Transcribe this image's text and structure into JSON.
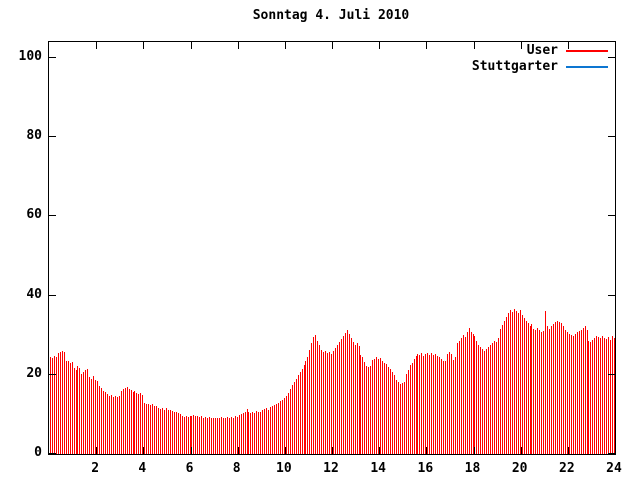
{
  "title": "Sonntag 4. Juli 2010",
  "colors": {
    "background": "#ffffff",
    "axis": "#000000",
    "text": "#000000",
    "user_red": "#ff0000",
    "stuttgarter_blue": "#0d76d1"
  },
  "legend": {
    "entries": [
      {
        "label": "User",
        "color": "#ff0000"
      },
      {
        "label": "Stuttgarter",
        "color": "#0d76d1"
      }
    ]
  },
  "chart_data": {
    "type": "bar",
    "title": "Sonntag 4. Juli 2010",
    "xlabel": "",
    "ylabel": "",
    "x_unit": "hour_of_day",
    "interval_minutes": 5,
    "xlim": [
      0,
      24
    ],
    "ylim": [
      0,
      104
    ],
    "xticks": [
      2,
      4,
      6,
      8,
      10,
      12,
      14,
      16,
      18,
      20,
      22,
      24
    ],
    "yticks": [
      0,
      20,
      40,
      60,
      80,
      100
    ],
    "grid": false,
    "legend_position": "top-right-inside",
    "series": [
      {
        "name": "User",
        "color": "#ff0000",
        "style": "impulses",
        "values": [
          24.5,
          24.2,
          24.8,
          24.4,
          25.4,
          25.8,
          26.1,
          25.7,
          23.6,
          23.4,
          22.9,
          23.3,
          21.8,
          21.3,
          22.1,
          21.6,
          20.3,
          20.8,
          21.2,
          21.5,
          19.4,
          19.0,
          19.6,
          18.8,
          18.4,
          17.2,
          16.6,
          15.8,
          15.6,
          15.2,
          14.7,
          15.0,
          14.4,
          14.7,
          14.3,
          14.6,
          15.9,
          16.3,
          16.6,
          16.9,
          16.4,
          16.1,
          15.7,
          16.0,
          15.4,
          15.1,
          15.5,
          15.0,
          12.9,
          12.5,
          12.7,
          12.3,
          12.6,
          12.2,
          12.0,
          11.7,
          11.4,
          11.6,
          11.2,
          11.5,
          11.0,
          11.2,
          10.8,
          10.5,
          10.7,
          10.3,
          10.0,
          9.7,
          9.4,
          9.6,
          9.3,
          9.5,
          9.6,
          9.8,
          9.5,
          9.7,
          9.4,
          9.6,
          9.2,
          9.4,
          9.1,
          9.3,
          9.0,
          9.2,
          9.0,
          9.2,
          9.1,
          9.3,
          9.2,
          9.0,
          9.3,
          9.1,
          9.4,
          9.2,
          9.5,
          9.3,
          9.8,
          10.1,
          10.4,
          10.7,
          11.3,
          10.6,
          10.4,
          10.7,
          10.3,
          10.8,
          10.5,
          10.7,
          11.0,
          11.4,
          11.7,
          11.2,
          11.9,
          12.1,
          12.4,
          12.7,
          13.0,
          13.3,
          13.7,
          14.1,
          14.6,
          15.5,
          16.4,
          17.3,
          18.2,
          19.0,
          19.9,
          20.6,
          21.5,
          22.4,
          23.4,
          24.6,
          26.2,
          28.1,
          29.5,
          30.1,
          28.6,
          27.4,
          26.3,
          25.7,
          26.0,
          25.4,
          25.7,
          25.2,
          26.0,
          26.7,
          27.5,
          28.3,
          29.1,
          29.8,
          30.6,
          31.4,
          30.4,
          29.3,
          28.2,
          27.6,
          27.9,
          27.3,
          24.9,
          24.5,
          23.2,
          22.1,
          21.9,
          22.3,
          23.7,
          24.0,
          24.4,
          24.1,
          24.3,
          23.5,
          23.1,
          22.6,
          22.0,
          21.4,
          20.7,
          19.9,
          18.7,
          18.1,
          17.6,
          17.9,
          18.3,
          20.2,
          21.3,
          22.5,
          23.1,
          24.1,
          24.7,
          25.2,
          24.9,
          25.4,
          24.8,
          25.3,
          25.5,
          25.1,
          25.4,
          24.9,
          25.2,
          24.7,
          24.4,
          24.1,
          23.6,
          23.4,
          25.2,
          25.8,
          25.3,
          23.8,
          24.6,
          27.9,
          28.6,
          29.2,
          30.1,
          29.6,
          30.9,
          31.8,
          30.7,
          30.2,
          29.7,
          28.6,
          27.6,
          27.1,
          26.4,
          25.9,
          26.6,
          27.1,
          27.6,
          28.1,
          28.6,
          28.3,
          29.3,
          31.6,
          32.6,
          33.6,
          34.6,
          35.6,
          36.4,
          35.9,
          36.6,
          36.1,
          35.6,
          36.3,
          35.1,
          34.4,
          33.6,
          33.0,
          32.4,
          32.9,
          31.5,
          31.2,
          31.7,
          31.3,
          30.9,
          31.1,
          36.2,
          32.3,
          31.6,
          32.4,
          32.9,
          33.3,
          33.6,
          33.4,
          33.0,
          32.2,
          31.3,
          30.7,
          30.4,
          30.0,
          29.8,
          30.2,
          30.7,
          31.0,
          31.3,
          31.9,
          32.2,
          31.4,
          28.6,
          28.3,
          28.7,
          29.4,
          29.9,
          29.6,
          29.2,
          29.7,
          29.4,
          29.1,
          29.6,
          28.9,
          29.7,
          29.3
        ]
      },
      {
        "name": "Stuttgarter",
        "color": "#0d76d1",
        "style": "line",
        "values": []
      }
    ]
  }
}
